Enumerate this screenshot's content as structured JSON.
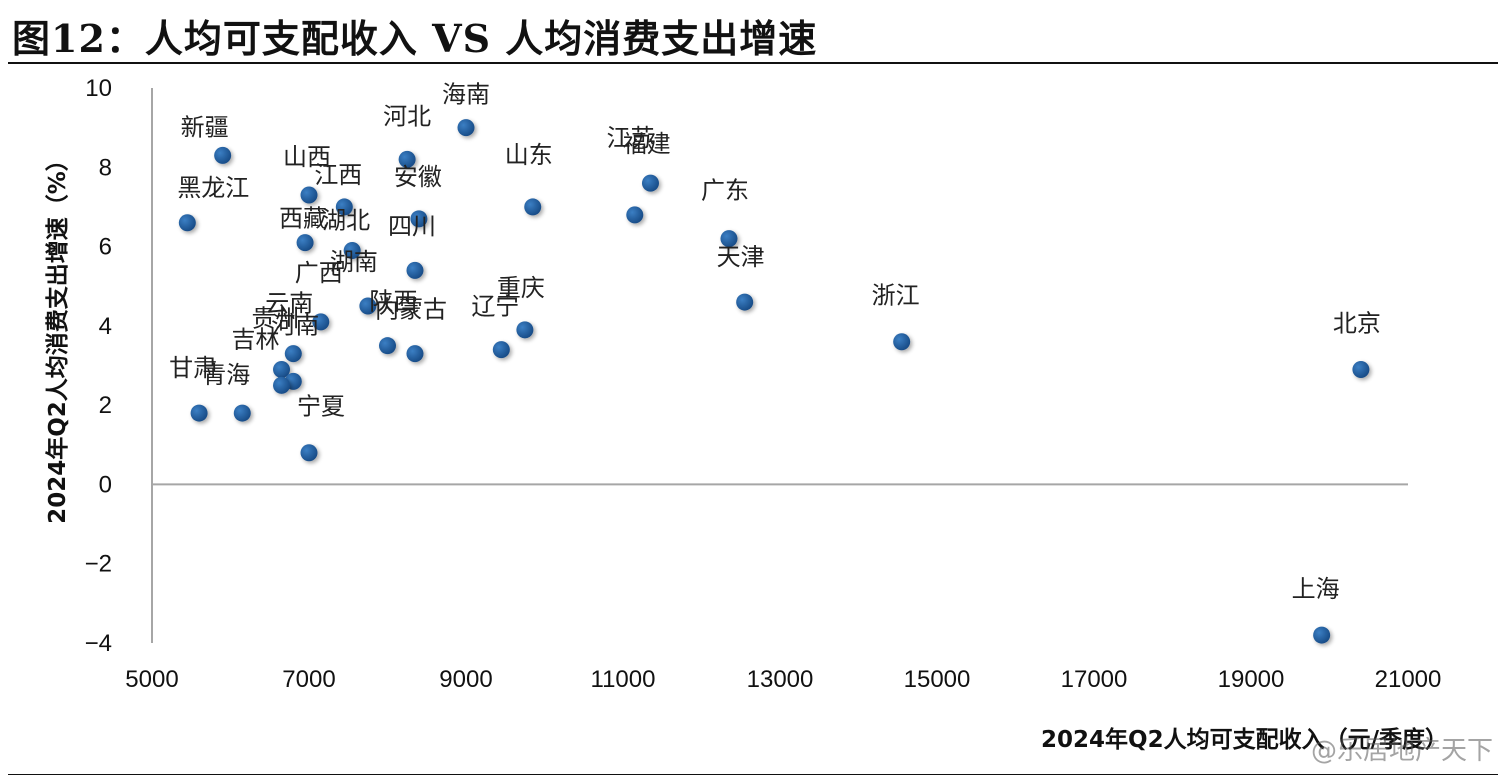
{
  "title": "图12：人均可支配收入 VS 人均消费支出增速",
  "watermark": "@乐居地产天下",
  "colors": {
    "point": "#1f5a9c",
    "axis": "#a6a6a6",
    "text": "#111111"
  },
  "chart_data": {
    "type": "scatter",
    "title": "图12：人均可支配收入 VS 人均消费支出增速",
    "xlabel": "2024年Q2人均可支配收入（元/季度）",
    "ylabel": "2024年Q2人均消费支出增速（%）",
    "xlim": [
      5000,
      21000
    ],
    "ylim": [
      -4,
      10
    ],
    "xticks": [
      5000,
      7000,
      9000,
      11000,
      13000,
      15000,
      17000,
      19000,
      21000
    ],
    "yticks": [
      10,
      8,
      6,
      4,
      2,
      0,
      -2,
      -4
    ],
    "ytick_labels": [
      "10",
      "8",
      "6",
      "4",
      "2",
      "0",
      "−2",
      "−4"
    ],
    "grid": false,
    "points": [
      {
        "name": "新疆",
        "x": 5900,
        "y": 8.3
      },
      {
        "name": "黑龙江",
        "x": 5450,
        "y": 6.6
      },
      {
        "name": "山西",
        "x": 7000,
        "y": 7.3
      },
      {
        "name": "江西",
        "x": 7450,
        "y": 7.0
      },
      {
        "name": "西藏",
        "x": 6950,
        "y": 6.1
      },
      {
        "name": "湖北",
        "x": 7550,
        "y": 5.9
      },
      {
        "name": "河北",
        "x": 8250,
        "y": 8.2
      },
      {
        "name": "海南",
        "x": 9000,
        "y": 9.0
      },
      {
        "name": "安徽",
        "x": 8400,
        "y": 6.7
      },
      {
        "name": "四川",
        "x": 8350,
        "y": 5.4
      },
      {
        "name": "湖南",
        "x": 7750,
        "y": 4.5
      },
      {
        "name": "广西",
        "x": 7150,
        "y": 4.1
      },
      {
        "name": "陕西",
        "x": 8000,
        "y": 3.5
      },
      {
        "name": "内蒙古",
        "x": 8350,
        "y": 3.3
      },
      {
        "name": "辽宁",
        "x": 9450,
        "y": 3.4
      },
      {
        "name": "重庆",
        "x": 9750,
        "y": 3.9
      },
      {
        "name": "山东",
        "x": 9850,
        "y": 7.0
      },
      {
        "name": "江苏",
        "x": 11350,
        "y": 7.6
      },
      {
        "name": "福建",
        "x": 11150,
        "y": 6.8
      },
      {
        "name": "广东",
        "x": 12350,
        "y": 6.2
      },
      {
        "name": "天津",
        "x": 12550,
        "y": 4.6
      },
      {
        "name": "浙江",
        "x": 14550,
        "y": 3.6
      },
      {
        "name": "北京",
        "x": 20400,
        "y": 2.9
      },
      {
        "name": "上海",
        "x": 19900,
        "y": -3.8
      },
      {
        "name": "云南",
        "x": 6800,
        "y": 3.3
      },
      {
        "name": "贵州",
        "x": 6650,
        "y": 2.9
      },
      {
        "name": "河南",
        "x": 6800,
        "y": 2.6
      },
      {
        "name": "吉林",
        "x": 6650,
        "y": 2.5
      },
      {
        "name": "甘肃",
        "x": 5600,
        "y": 1.8
      },
      {
        "name": "青海",
        "x": 6150,
        "y": 1.8
      },
      {
        "name": "宁夏",
        "x": 7000,
        "y": 0.8
      }
    ]
  }
}
